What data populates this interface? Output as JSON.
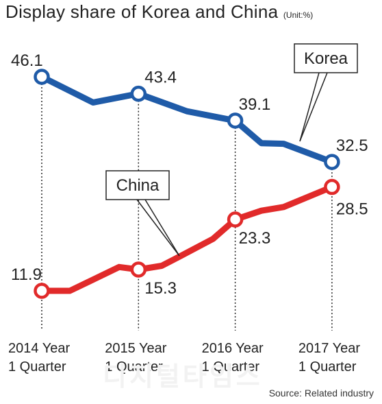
{
  "title": "Display share of Korea and China",
  "unit": "(Unit:%)",
  "source": "Source: Related industry",
  "watermark": "디지털타임스",
  "colors": {
    "korea": "#1f5ba8",
    "china": "#e12a2a",
    "text": "#222222"
  },
  "chart_data": {
    "type": "line",
    "categories": [
      "2014 Year 1 Quarter",
      "2015 Year 1 Quarter",
      "2016 Year 1 Quarter",
      "2017 Year 1 Quarter"
    ],
    "category_lines": [
      [
        "2014 Year",
        "1 Quarter"
      ],
      [
        "2015 Year",
        "1 Quarter"
      ],
      [
        "2016 Year",
        "1 Quarter"
      ],
      [
        "2017 Year",
        "1 Quarter"
      ]
    ],
    "series": [
      {
        "name": "Korea",
        "values": [
          46.1,
          43.4,
          39.1,
          32.5
        ],
        "labels": [
          "46.1",
          "43.4",
          "39.1",
          "32.5"
        ],
        "path": [
          [
            0,
            46.1
          ],
          [
            0.53,
            42.0
          ],
          [
            1,
            43.4
          ],
          [
            1.5,
            40.6
          ],
          [
            2,
            39.1
          ],
          [
            2.27,
            35.5
          ],
          [
            2.5,
            35.4
          ],
          [
            3,
            32.5
          ]
        ]
      },
      {
        "name": "China",
        "values": [
          11.9,
          15.3,
          23.3,
          28.5
        ],
        "labels": [
          "11.9",
          "15.3",
          "23.3",
          "28.5"
        ],
        "path": [
          [
            0,
            11.9
          ],
          [
            0.29,
            11.9
          ],
          [
            0.8,
            15.7
          ],
          [
            1,
            15.3
          ],
          [
            1.24,
            15.9
          ],
          [
            1.44,
            17.5
          ],
          [
            1.77,
            20.2
          ],
          [
            2,
            23.3
          ],
          [
            2.27,
            24.7
          ],
          [
            2.5,
            25.3
          ],
          [
            3,
            28.5
          ]
        ]
      }
    ],
    "grid": false,
    "legend": "callout-labels"
  }
}
